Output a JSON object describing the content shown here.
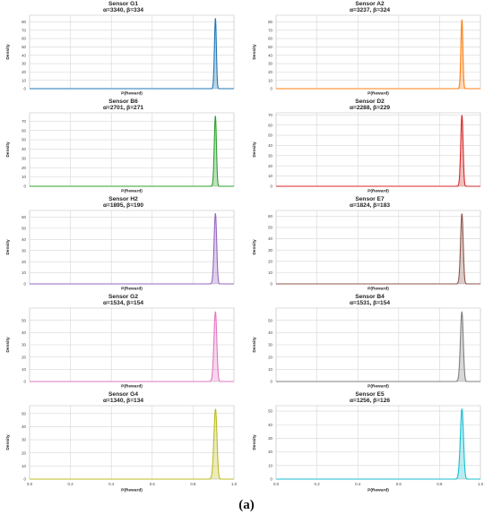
{
  "caption": "(a)",
  "chart_data": [
    {
      "type": "area",
      "title": "Sensor G1",
      "subtitle": "α=3340, β=334",
      "alpha": 3340,
      "beta": 334,
      "color": "#1f77b4",
      "xlabel": "P(Reward)",
      "ylabel": "Density",
      "xlim": [
        0.0,
        1.0
      ],
      "ylim": [
        0,
        88
      ],
      "yticks": [
        "0",
        "10",
        "20",
        "30",
        "40",
        "50",
        "60",
        "70",
        "80"
      ],
      "xticks": [],
      "peak": 84.0,
      "grid": true
    },
    {
      "type": "area",
      "title": "Sensor A2",
      "subtitle": "α=3237, β=324",
      "alpha": 3237,
      "beta": 324,
      "color": "#ff7f0e",
      "xlabel": "P(Reward)",
      "ylabel": "Density",
      "xlim": [
        0.0,
        1.0
      ],
      "ylim": [
        0,
        88
      ],
      "yticks": [
        "0",
        "10",
        "20",
        "30",
        "40",
        "50",
        "60",
        "70",
        "80"
      ],
      "xticks": [],
      "peak": 82.5,
      "grid": true
    },
    {
      "type": "area",
      "title": "Sensor B6",
      "subtitle": "α=2701, β=271",
      "alpha": 2701,
      "beta": 271,
      "color": "#2ca02c",
      "xlabel": "P(Reward)",
      "ylabel": "Density",
      "xlim": [
        0.0,
        1.0
      ],
      "ylim": [
        0,
        79
      ],
      "yticks": [
        "0",
        "10",
        "20",
        "30",
        "40",
        "50",
        "60",
        "70"
      ],
      "xticks": [],
      "peak": 75.4,
      "grid": true
    },
    {
      "type": "area",
      "title": "Sensor D2",
      "subtitle": "α=2288, β=229",
      "alpha": 2288,
      "beta": 229,
      "color": "#d62728",
      "xlabel": "P(Reward)",
      "ylabel": "Density",
      "xlim": [
        0.0,
        1.0
      ],
      "ylim": [
        0,
        72
      ],
      "yticks": [
        "0",
        "10",
        "20",
        "30",
        "40",
        "50",
        "60",
        "70"
      ],
      "xticks": [],
      "peak": 69.4,
      "grid": true
    },
    {
      "type": "area",
      "title": "Sensor H2",
      "subtitle": "α=1895, β=190",
      "alpha": 1895,
      "beta": 190,
      "color": "#9467bd",
      "xlabel": "P(Reward)",
      "ylabel": "Density",
      "xlim": [
        0.0,
        1.0
      ],
      "ylim": [
        0,
        66
      ],
      "yticks": [
        "0",
        "10",
        "20",
        "30",
        "40",
        "50",
        "60"
      ],
      "xticks": [],
      "peak": 63.2,
      "grid": true
    },
    {
      "type": "area",
      "title": "Sensor E7",
      "subtitle": "α=1824, β=183",
      "alpha": 1824,
      "beta": 183,
      "color": "#8c564b",
      "xlabel": "P(Reward)",
      "ylabel": "Density",
      "xlim": [
        0.0,
        1.0
      ],
      "ylim": [
        0,
        65
      ],
      "yticks": [
        "0",
        "10",
        "20",
        "30",
        "40",
        "50",
        "60"
      ],
      "xticks": [],
      "peak": 62.0,
      "grid": true
    },
    {
      "type": "area",
      "title": "Sensor G2",
      "subtitle": "α=1534, β=154",
      "alpha": 1534,
      "beta": 154,
      "color": "#e377c2",
      "xlabel": "P(Reward)",
      "ylabel": "Density",
      "xlim": [
        0.0,
        1.0
      ],
      "ylim": [
        0,
        60
      ],
      "yticks": [
        "0",
        "10",
        "20",
        "30",
        "40",
        "50"
      ],
      "xticks": [],
      "peak": 56.9,
      "grid": true
    },
    {
      "type": "area",
      "title": "Sensor B4",
      "subtitle": "α=1531, β=154",
      "alpha": 1531,
      "beta": 154,
      "color": "#7f7f7f",
      "xlabel": "P(Reward)",
      "ylabel": "Density",
      "xlim": [
        0.0,
        1.0
      ],
      "ylim": [
        0,
        60
      ],
      "yticks": [
        "0",
        "10",
        "20",
        "30",
        "40",
        "50"
      ],
      "xticks": [],
      "peak": 56.9,
      "grid": true
    },
    {
      "type": "area",
      "title": "Sensor G4",
      "subtitle": "α=1340, β=134",
      "alpha": 1340,
      "beta": 134,
      "color": "#bcbd22",
      "xlabel": "P(Reward)",
      "ylabel": "Density",
      "xlim": [
        0.0,
        1.0
      ],
      "ylim": [
        0,
        56
      ],
      "yticks": [
        "0",
        "10",
        "20",
        "30",
        "40",
        "50"
      ],
      "xticks": [
        "0.0",
        "0.2",
        "0.4",
        "0.6",
        "0.8",
        "1.0"
      ],
      "peak": 53.3,
      "grid": true
    },
    {
      "type": "area",
      "title": "Sensor E5",
      "subtitle": "α=1256, β=126",
      "alpha": 1256,
      "beta": 126,
      "color": "#17becf",
      "xlabel": "P(Reward)",
      "ylabel": "Density",
      "xlim": [
        0.0,
        1.0
      ],
      "ylim": [
        0,
        54
      ],
      "yticks": [
        "0",
        "10",
        "20",
        "30",
        "40",
        "50"
      ],
      "xticks": [
        "0.0",
        "0.2",
        "0.4",
        "0.6",
        "0.8",
        "1.0"
      ],
      "peak": 51.5,
      "grid": true
    }
  ]
}
